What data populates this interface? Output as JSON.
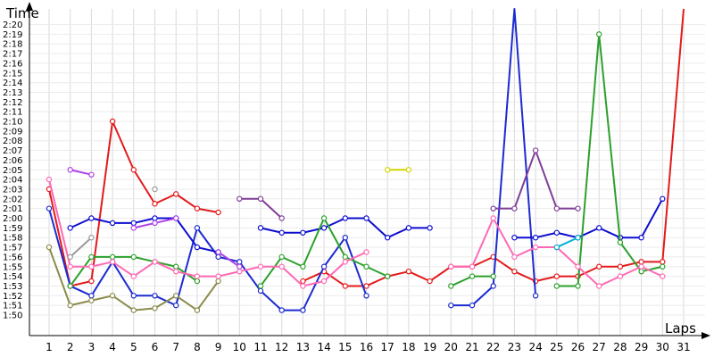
{
  "chart_data": {
    "type": "line",
    "title": "",
    "ylabel": "Time",
    "xlabel": "Laps",
    "x": [
      1,
      2,
      3,
      4,
      5,
      6,
      7,
      8,
      9,
      10,
      11,
      12,
      13,
      14,
      15,
      16,
      17,
      18,
      19,
      20,
      21,
      22,
      23,
      24,
      25,
      26,
      27,
      28,
      29,
      30,
      31
    ],
    "xlim": [
      0,
      31
    ],
    "yticks": [
      "1:50",
      "1:51",
      "1:52",
      "1:53",
      "1:54",
      "1:55",
      "1:56",
      "1:57",
      "1:58",
      "1:59",
      "2:00",
      "2:01",
      "2:02",
      "2:03",
      "2:04",
      "2:05",
      "2:06",
      "2:07",
      "2:08",
      "2:09",
      "2:10",
      "2:11",
      "2:12",
      "2:13",
      "2:14",
      "2:15",
      "2:16",
      "2:17",
      "2:18",
      "2:19",
      "2:20"
    ],
    "ylim_seconds": [
      110,
      140
    ],
    "y_unit": "seconds",
    "grid": true,
    "series": [
      {
        "color": "#e31a1c",
        "values": [
          123,
          113,
          113.5,
          130,
          125,
          121.5,
          122.5,
          121,
          120.6,
          null,
          null,
          null,
          113.5,
          114.5,
          113,
          113,
          114,
          114.5,
          113.5,
          115,
          115,
          116,
          114.5,
          113.5,
          114,
          114,
          115,
          115,
          115.5,
          115.5,
          155
        ]
      },
      {
        "color": "#1c2bd1",
        "values": [
          121,
          113,
          112,
          115.5,
          112,
          112,
          111,
          119,
          116,
          115.5,
          112.5,
          110.5,
          110.5,
          115,
          118,
          112,
          null,
          null,
          null,
          111,
          111,
          113,
          157,
          112,
          null,
          null,
          null,
          null,
          null,
          null,
          null
        ]
      },
      {
        "color": "#0d0dcf",
        "values": [
          null,
          119,
          120,
          119.5,
          119.5,
          120,
          120,
          117,
          116.5,
          null,
          119,
          118.5,
          118.5,
          119,
          120,
          120,
          118,
          119,
          119,
          null,
          null,
          null,
          118,
          118,
          118.5,
          118,
          119,
          118,
          118,
          122,
          null
        ]
      },
      {
        "color": "#2ca02c",
        "values": [
          null,
          113,
          116,
          116,
          116,
          115.5,
          115,
          113.5,
          null,
          null,
          113,
          116,
          115,
          120,
          116,
          115,
          114,
          null,
          null,
          113,
          114,
          114,
          null,
          null,
          113,
          113,
          139,
          117.5,
          114.5,
          115,
          null
        ]
      },
      {
        "color": "#8b8b4b",
        "values": [
          117,
          111,
          111.5,
          112,
          110.5,
          110.7,
          112,
          110.5,
          113.5,
          null,
          null,
          null,
          null,
          null,
          null,
          null,
          null,
          null,
          null,
          null,
          null,
          null,
          null,
          null,
          null,
          null,
          null,
          null,
          null,
          null,
          null
        ]
      },
      {
        "color": "#ff69b4",
        "values": [
          124,
          115,
          115,
          115.5,
          114,
          115.5,
          114.5,
          114,
          114,
          114.5,
          115,
          115,
          113,
          113.5,
          115.5,
          116.5,
          null,
          null,
          null,
          115,
          115,
          120,
          116,
          117,
          117,
          115,
          113,
          114,
          115,
          114,
          null
        ]
      },
      {
        "color": "#b040e8",
        "values": [
          null,
          125,
          124.5,
          null,
          119,
          119.5,
          120,
          null,
          116.5,
          115,
          null,
          null,
          null,
          null,
          null,
          null,
          null,
          null,
          null,
          null,
          null,
          null,
          null,
          null,
          null,
          null,
          null,
          null,
          null,
          null,
          null
        ]
      },
      {
        "color": "#9a9a9a",
        "values": [
          null,
          116,
          118,
          null,
          null,
          123,
          null,
          null,
          null,
          null,
          null,
          null,
          null,
          null,
          null,
          null,
          null,
          null,
          null,
          null,
          null,
          null,
          null,
          null,
          null,
          null,
          null,
          null,
          null,
          null,
          null
        ]
      },
      {
        "color": "#7e3f98",
        "values": [
          null,
          null,
          null,
          null,
          null,
          null,
          null,
          null,
          null,
          122,
          122,
          120,
          null,
          null,
          null,
          null,
          null,
          null,
          null,
          null,
          null,
          121,
          121,
          127,
          121,
          121,
          null,
          null,
          null,
          null,
          null
        ]
      },
      {
        "color": "#00b0d0",
        "values": [
          null,
          null,
          null,
          null,
          null,
          null,
          null,
          null,
          null,
          null,
          null,
          null,
          null,
          null,
          null,
          null,
          null,
          null,
          null,
          null,
          null,
          null,
          null,
          null,
          117,
          118,
          null,
          null,
          null,
          null,
          null
        ]
      },
      {
        "color": "#d4d400",
        "values": [
          null,
          null,
          null,
          null,
          null,
          null,
          null,
          null,
          null,
          null,
          null,
          null,
          null,
          null,
          null,
          null,
          125,
          125,
          null,
          null,
          null,
          null,
          null,
          null,
          null,
          null,
          null,
          null,
          null,
          null,
          null
        ]
      },
      {
        "color": "#303030",
        "values": [
          null,
          null,
          null,
          null,
          null,
          null,
          null,
          null,
          null,
          null,
          null,
          null,
          null,
          null,
          null,
          null,
          null,
          null,
          null,
          null,
          null,
          null,
          null,
          null,
          null,
          null,
          null,
          null,
          null,
          null,
          null
        ]
      }
    ]
  }
}
